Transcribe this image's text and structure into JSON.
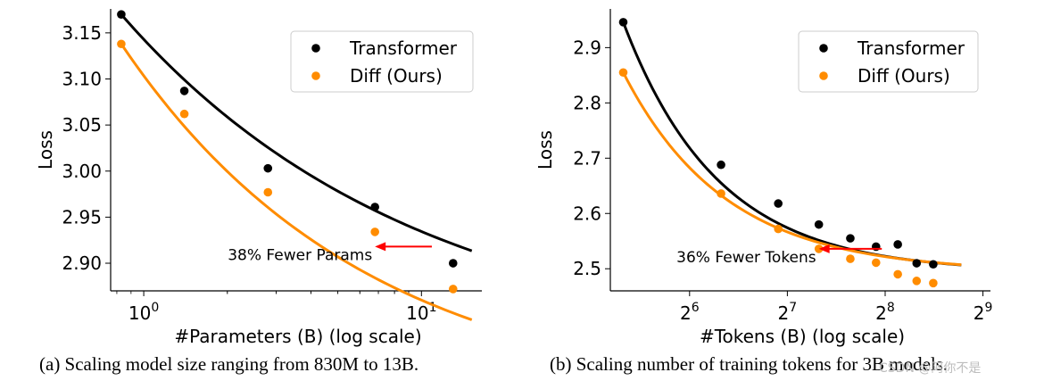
{
  "chart_data": [
    {
      "id": "a",
      "type": "scatter",
      "xscale": "log10",
      "xlabel": "#Parameters (B) (log scale)",
      "ylabel": "Loss",
      "xlim": [
        0.76,
        16.5
      ],
      "ylim": [
        2.87,
        3.176
      ],
      "ytick_labels": [
        "2.90",
        "2.95",
        "3.00",
        "3.05",
        "3.10",
        "3.15"
      ],
      "xtick_labels": [
        {
          "base": "10",
          "exp": "0"
        },
        {
          "base": "10",
          "exp": "1"
        }
      ],
      "series": [
        {
          "name": "Transformer",
          "color": "#000000",
          "x": [
            0.83,
            1.4,
            2.8,
            6.8,
            13
          ],
          "y": [
            3.17,
            3.087,
            3.003,
            2.961,
            2.9
          ],
          "fit": {
            "a": 3.101,
            "b": 0.0678,
            "c": 2.8
          }
        },
        {
          "name": "Diff (Ours)",
          "color": "#ff8c00",
          "x": [
            0.83,
            1.4,
            2.8,
            6.8,
            13
          ],
          "y": [
            3.138,
            3.062,
            2.977,
            2.934,
            2.872
          ],
          "fit": {
            "a": 3.075,
            "b": 0.0823,
            "c": 2.745
          }
        }
      ],
      "annotation": {
        "text": "38% Fewer Params",
        "arrow_from": [
          10.9,
          2.918
        ],
        "arrow_to": [
          6.8,
          2.918
        ],
        "color": "#ff0000"
      },
      "legend": "top-right",
      "caption": "(a) Scaling model size ranging from 830M to 13B."
    },
    {
      "id": "b",
      "type": "scatter",
      "xscale": "log2",
      "xlabel": "#Tokens (B) (log scale)",
      "ylabel": "Loss",
      "xlim": [
        36.5,
        540
      ],
      "ylim": [
        2.46,
        2.97
      ],
      "ytick_labels": [
        "2.5",
        "2.6",
        "2.7",
        "2.8",
        "2.9"
      ],
      "xtick_labels": [
        {
          "base": "2",
          "exp": "6"
        },
        {
          "base": "2",
          "exp": "7"
        },
        {
          "base": "2",
          "exp": "8"
        },
        {
          "base": "2",
          "exp": "9"
        }
      ],
      "series": [
        {
          "name": "Transformer",
          "color": "#000000",
          "x": [
            40,
            80,
            120,
            160,
            200,
            240,
            280,
            320,
            360
          ],
          "y": [
            2.946,
            2.688,
            2.618,
            2.58,
            2.555,
            2.54,
            2.544,
            2.51,
            2.508
          ],
          "fit": {
            "a": 2.6,
            "b": 0.46,
            "c": 0.48
          }
        },
        {
          "name": "Diff (Ours)",
          "color": "#ff8c00",
          "x": [
            40,
            80,
            120,
            160,
            200,
            240,
            280,
            320,
            360
          ],
          "y": [
            2.855,
            2.636,
            2.572,
            2.536,
            2.518,
            2.511,
            2.49,
            2.478,
            2.474
          ],
          "fit": {
            "a": 2.6,
            "b": 0.494,
            "c": 0.445
          }
        }
      ],
      "annotation": {
        "text": "36% Fewer Tokens",
        "arrow_from": [
          250,
          2.536
        ],
        "arrow_to": [
          160,
          2.536
        ],
        "color": "#ff0000"
      },
      "legend": "top-right",
      "caption": "(b) Scaling number of training tokens for 3B models."
    }
  ],
  "watermark": "CSDN @阿你不是"
}
